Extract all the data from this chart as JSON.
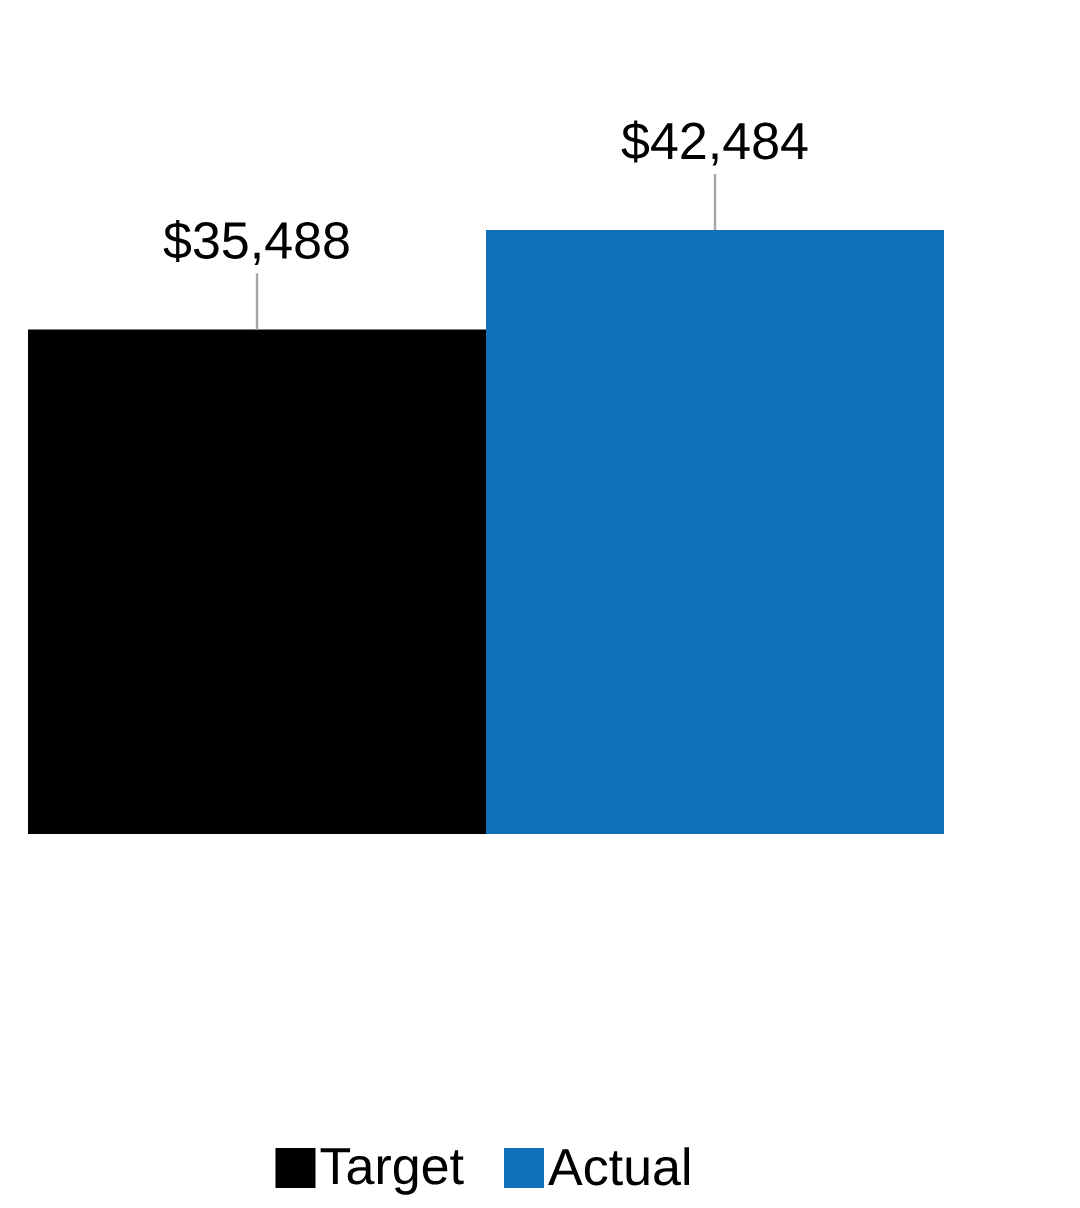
{
  "chart_data": {
    "type": "bar",
    "categories": [
      null
    ],
    "legend": "bottom",
    "series": [
      {
        "name": "Target",
        "color": "#000000",
        "values": [
          35488
        ],
        "value_labels": [
          "$35,488"
        ]
      },
      {
        "name": "Actual",
        "color": "#0f71b8",
        "values": [
          42484
        ],
        "value_labels": [
          "$42,484"
        ]
      }
    ]
  }
}
